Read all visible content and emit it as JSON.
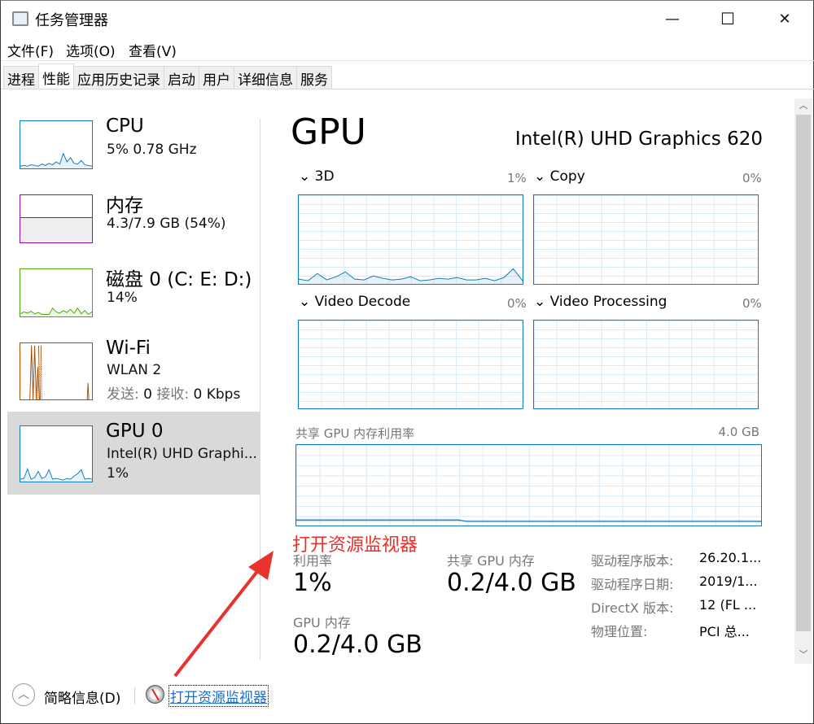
{
  "window": {
    "title": "任务管理器",
    "minimize": "—",
    "maximize": "☐",
    "close": "✕"
  },
  "menu": [
    "文件(F)",
    "选项(O)",
    "查看(V)"
  ],
  "tabs": [
    {
      "label": "进程"
    },
    {
      "label": "性能",
      "active": true
    },
    {
      "label": "应用历史记录"
    },
    {
      "label": "启动"
    },
    {
      "label": "用户"
    },
    {
      "label": "详细信息"
    },
    {
      "label": "服务"
    }
  ],
  "sidebar": [
    {
      "name": "CPU",
      "line1": "5%  0.78 GHz",
      "color": "#117dbb",
      "history": [
        2,
        3,
        2,
        4,
        3,
        2,
        5,
        3,
        6,
        4,
        8,
        5,
        20,
        8,
        14,
        6,
        5,
        10,
        4,
        3,
        2
      ]
    },
    {
      "name": "内存",
      "line1": "4.3/7.9 GB (54%)",
      "color": "#8b12ae",
      "usage_pct": 54
    },
    {
      "name": "磁盘 0 (C: E: D:)",
      "line1": "14%",
      "color": "#4da60c",
      "history": [
        3,
        6,
        4,
        7,
        3,
        5,
        2,
        2,
        2,
        12,
        6,
        4,
        8,
        5,
        10,
        4,
        12,
        3,
        8,
        2,
        6
      ]
    },
    {
      "name": "Wi-Fi",
      "line1": "WLAN 2",
      "line2_label1": "发送:",
      "line2_val1": "0",
      "line2_label2": "接收:",
      "line2_val2": "0 Kbps",
      "color": "#a74f01"
    },
    {
      "name": "GPU 0",
      "line1": "Intel(R) UHD Graphi...",
      "line2": "1%",
      "color": "#117dbb",
      "selected": true,
      "history": [
        2,
        3,
        15,
        2,
        4,
        12,
        3,
        5,
        14,
        2,
        3,
        2,
        1,
        3,
        2,
        6,
        9,
        14,
        2,
        3,
        2
      ]
    }
  ],
  "main": {
    "title": "GPU",
    "device": "Intel(R) UHD Graphics 620",
    "engines": [
      {
        "label": "3D",
        "pct": "1%",
        "history": [
          5,
          3,
          12,
          4,
          8,
          14,
          5,
          4,
          9,
          6,
          4,
          5,
          8,
          3,
          4,
          6,
          5,
          7,
          4,
          4,
          6,
          3,
          7,
          18,
          3
        ]
      },
      {
        "label": "Copy",
        "pct": "0%"
      },
      {
        "label": "Video Decode",
        "pct": "0%"
      },
      {
        "label": "Video Processing",
        "pct": "0%"
      }
    ],
    "shared_mem_graph": {
      "label": "共享 GPU 内存利用率",
      "max": "4.0 GB",
      "usage_pct": 5
    },
    "stats": {
      "utilization_label": "利用率",
      "utilization": "1%",
      "shared_label": "共享 GPU 内存",
      "shared": "0.2/4.0 GB",
      "gpu_mem_label": "GPU 内存",
      "gpu_mem": "0.2/4.0 GB"
    },
    "props": [
      {
        "k": "驱动程序版本:",
        "v": "26.20.1..."
      },
      {
        "k": "驱动程序日期:",
        "v": "2019/1..."
      },
      {
        "k": "DirectX 版本:",
        "v": "12 (FL ..."
      },
      {
        "k": "物理位置:",
        "v": "PCI 总..."
      }
    ]
  },
  "footer": {
    "fewer_details": "简略信息(D)",
    "open_resmon": "打开资源监视器"
  },
  "annotation": {
    "text": "打开资源监视器",
    "color": "#e8322d"
  }
}
